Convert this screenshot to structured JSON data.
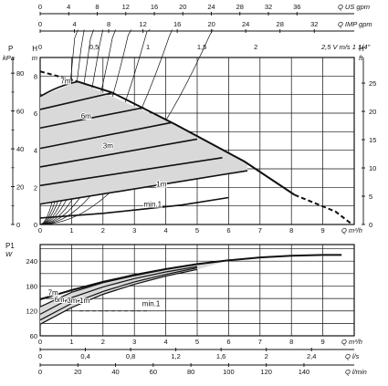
{
  "chart_data": [
    {
      "type": "line",
      "name": "pressure-head-chart",
      "x_axis": {
        "label": "Q m³/h",
        "ticks": [
          0,
          1,
          2,
          3,
          4,
          5,
          6,
          7,
          8,
          9
        ],
        "range": [
          0,
          10
        ]
      },
      "left_axis": {
        "label_top": "P",
        "label_bottom": "kPa",
        "ticks": [
          0,
          20,
          40,
          60,
          80
        ],
        "range": [
          0,
          90
        ]
      },
      "inner_axis": {
        "label_top": "H",
        "label_bottom": "m",
        "ticks": [
          0,
          2,
          4,
          6,
          8
        ]
      },
      "right_axis": {
        "label_top": "H",
        "label_bottom": "ft",
        "ticks": [
          0,
          5,
          10,
          15,
          20,
          25
        ]
      },
      "curve_labels": [
        {
          "text": "7m",
          "at": [
            0.65,
            7.6
          ]
        },
        {
          "text": "6m",
          "at": [
            1.3,
            5.7
          ]
        },
        {
          "text": "3m",
          "at": [
            2.0,
            4.1
          ]
        },
        {
          "text": "1m",
          "at": [
            3.7,
            2.05
          ]
        },
        {
          "text": "min.1",
          "at": [
            3.3,
            0.95
          ]
        }
      ],
      "series": [
        {
          "label": "7m",
          "x": [
            0,
            2.3
          ],
          "y": [
            6.2,
            7.1
          ]
        },
        {
          "label": "6m",
          "x": [
            0,
            3.3
          ],
          "y": [
            5.2,
            6.3
          ]
        },
        {
          "label": "5m",
          "x": [
            0,
            4.2
          ],
          "y": [
            4.1,
            5.5
          ]
        },
        {
          "label": "4m",
          "x": [
            0,
            5.0
          ],
          "y": [
            3.1,
            4.6
          ]
        },
        {
          "label": "3m",
          "x": [
            0,
            5.8
          ],
          "y": [
            2.1,
            3.6
          ]
        },
        {
          "label": "1m",
          "x": [
            0,
            6.6
          ],
          "y": [
            1.1,
            2.9
          ]
        },
        {
          "label": "min.1",
          "x": [
            0,
            2.0,
            4.5,
            6.0
          ],
          "y": [
            0.35,
            0.6,
            1.05,
            1.45
          ]
        },
        {
          "label": "max",
          "x": [
            0,
            1.2,
            2.3,
            4.3,
            6.5,
            8.1,
            9.4,
            9.9
          ],
          "y": [
            8.2,
            7.7,
            7.1,
            5.4,
            3.4,
            1.6,
            0.7,
            0.05
          ]
        }
      ],
      "system_curves": [
        0.35,
        0.6,
        0.9,
        1.3,
        1.9,
        2.7,
        3.9,
        5.6,
        8.3
      ]
    },
    {
      "type": "line",
      "name": "power-chart",
      "x_axis": {
        "label": "Q m³/h",
        "ticks": [
          0,
          1,
          2,
          3,
          4,
          5,
          6,
          7,
          8,
          9
        ],
        "range": [
          0,
          10
        ]
      },
      "y_axis": {
        "label_top": "P1",
        "label_bottom": "W",
        "ticks": [
          60,
          120,
          180,
          240
        ],
        "range": [
          60,
          280
        ]
      },
      "curve_labels": [
        {
          "text": "7m",
          "at": [
            0.25,
            158
          ]
        },
        {
          "text": "6m",
          "at": [
            0.45,
            141
          ]
        },
        {
          "text": "3m",
          "at": [
            0.85,
            139
          ]
        },
        {
          "text": "1m",
          "at": [
            1.25,
            139
          ]
        },
        {
          "text": "min.1",
          "at": [
            3.25,
            132
          ]
        }
      ],
      "series": [
        {
          "label": "max",
          "x": [
            0,
            1,
            2,
            3,
            4,
            5,
            6,
            7,
            8,
            9,
            9.6
          ],
          "y": [
            148,
            170,
            190,
            207,
            221,
            233,
            242,
            249,
            253,
            255,
            255
          ]
        },
        {
          "label": "7m",
          "x": [
            0,
            1,
            2,
            3,
            4,
            5,
            6
          ],
          "y": [
            130,
            165,
            188,
            205,
            220,
            232,
            242
          ]
        },
        {
          "label": "6m",
          "x": [
            0,
            1,
            2,
            3,
            4,
            5
          ],
          "y": [
            112,
            152,
            178,
            198,
            214,
            227
          ]
        },
        {
          "label": "3m",
          "x": [
            0,
            1,
            2,
            3,
            4,
            5
          ],
          "y": [
            98,
            138,
            167,
            190,
            208,
            224
          ]
        },
        {
          "label": "1m",
          "x": [
            0,
            1,
            2,
            3,
            4,
            5
          ],
          "y": [
            88,
            128,
            160,
            184,
            204,
            220
          ]
        },
        {
          "label": "min.1",
          "x": [
            1.25,
            3.5
          ],
          "y": [
            120,
            120
          ]
        }
      ]
    }
  ],
  "top_scales": [
    {
      "name": "us-gpm",
      "label": "Q US gpm",
      "ticks": [
        0,
        4,
        8,
        12,
        16,
        20,
        24,
        28,
        32,
        36
      ],
      "factor": 4.4029
    },
    {
      "name": "imp-gpm",
      "label": "Q IMP gpm",
      "ticks": [
        0,
        4,
        8,
        12,
        16,
        20,
        24,
        28,
        32
      ],
      "factor": 3.6662
    },
    {
      "name": "velocity",
      "label": "2,5 V m/s 1 1/4\"",
      "tick_labels": [
        "0",
        "0,5",
        "1",
        "1,5",
        "2"
      ],
      "ticks": [
        0,
        0.5,
        1,
        1.5,
        2
      ],
      "factor": 0.2913
    }
  ],
  "bottom_scales": [
    {
      "name": "ls",
      "label": "Q l/s",
      "tick_labels": [
        "0",
        "0,4",
        "0,8",
        "1,2",
        "1,6",
        "2",
        "2,4"
      ],
      "ticks": [
        0,
        0.4,
        0.8,
        1.2,
        1.6,
        2.0,
        2.4
      ],
      "factor": 0.27778
    },
    {
      "name": "lmin",
      "label": "Q l/min",
      "tick_labels": [
        "0",
        "20",
        "40",
        "60",
        "80",
        "100",
        "120",
        "140"
      ],
      "ticks": [
        0,
        20,
        40,
        60,
        80,
        100,
        120,
        140
      ],
      "factor": 16.6667
    }
  ],
  "colors": {
    "ink": "#111111",
    "hatch_fill": "#d9d9d9",
    "grid": "#222222"
  }
}
